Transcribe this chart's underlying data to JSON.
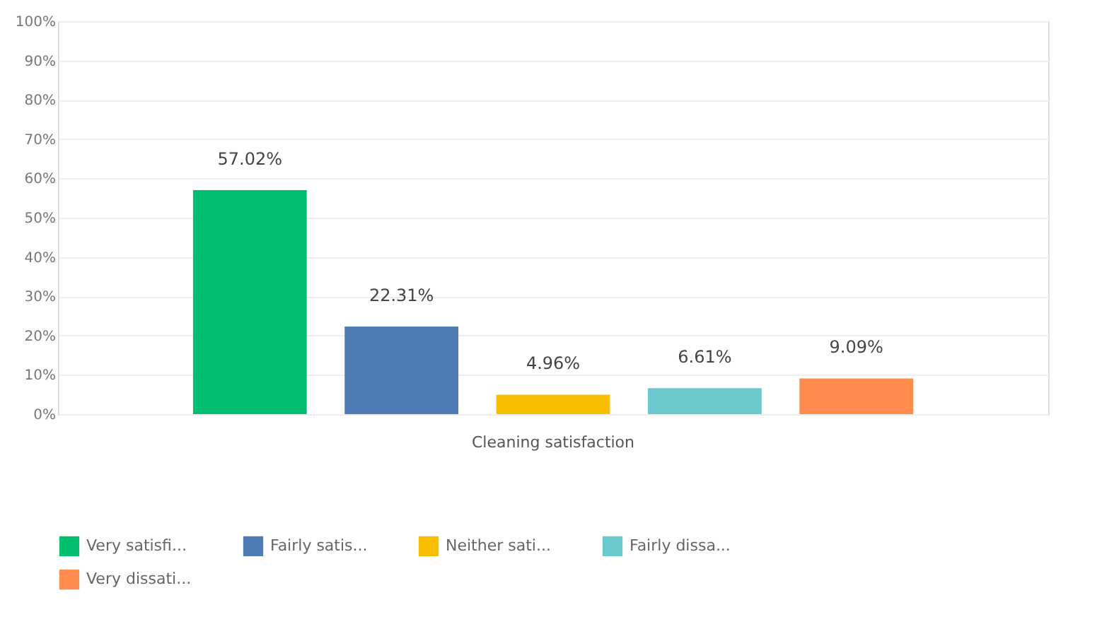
{
  "chart_data": {
    "type": "bar",
    "categories": [
      "Cleaning satisfaction"
    ],
    "series": [
      {
        "name": "Very satisfi...",
        "color": "#00bf6f",
        "values": [
          57.02
        ],
        "value_labels": [
          "57.02%"
        ]
      },
      {
        "name": "Fairly satis...",
        "color": "#507cb6",
        "values": [
          22.31
        ],
        "value_labels": [
          "22.31%"
        ]
      },
      {
        "name": "Neither sati...",
        "color": "#f9be00",
        "values": [
          4.96
        ],
        "value_labels": [
          "4.96%"
        ]
      },
      {
        "name": "Fairly dissa...",
        "color": "#6bc8cd",
        "values": [
          6.61
        ],
        "value_labels": [
          "6.61%"
        ]
      },
      {
        "name": "Very dissati...",
        "color": "#ff8b4f",
        "values": [
          9.09
        ],
        "value_labels": [
          "9.09%"
        ]
      }
    ],
    "ylim": [
      0,
      100
    ],
    "yticks": [
      {
        "value": 0,
        "label": "0%"
      },
      {
        "value": 10,
        "label": "10%"
      },
      {
        "value": 20,
        "label": "20%"
      },
      {
        "value": 30,
        "label": "30%"
      },
      {
        "value": 40,
        "label": "40%"
      },
      {
        "value": 50,
        "label": "50%"
      },
      {
        "value": 60,
        "label": "60%"
      },
      {
        "value": 70,
        "label": "70%"
      },
      {
        "value": 80,
        "label": "80%"
      },
      {
        "value": 90,
        "label": "90%"
      },
      {
        "value": 100,
        "label": "100%"
      }
    ],
    "grid": "y",
    "legend": "bottom"
  }
}
